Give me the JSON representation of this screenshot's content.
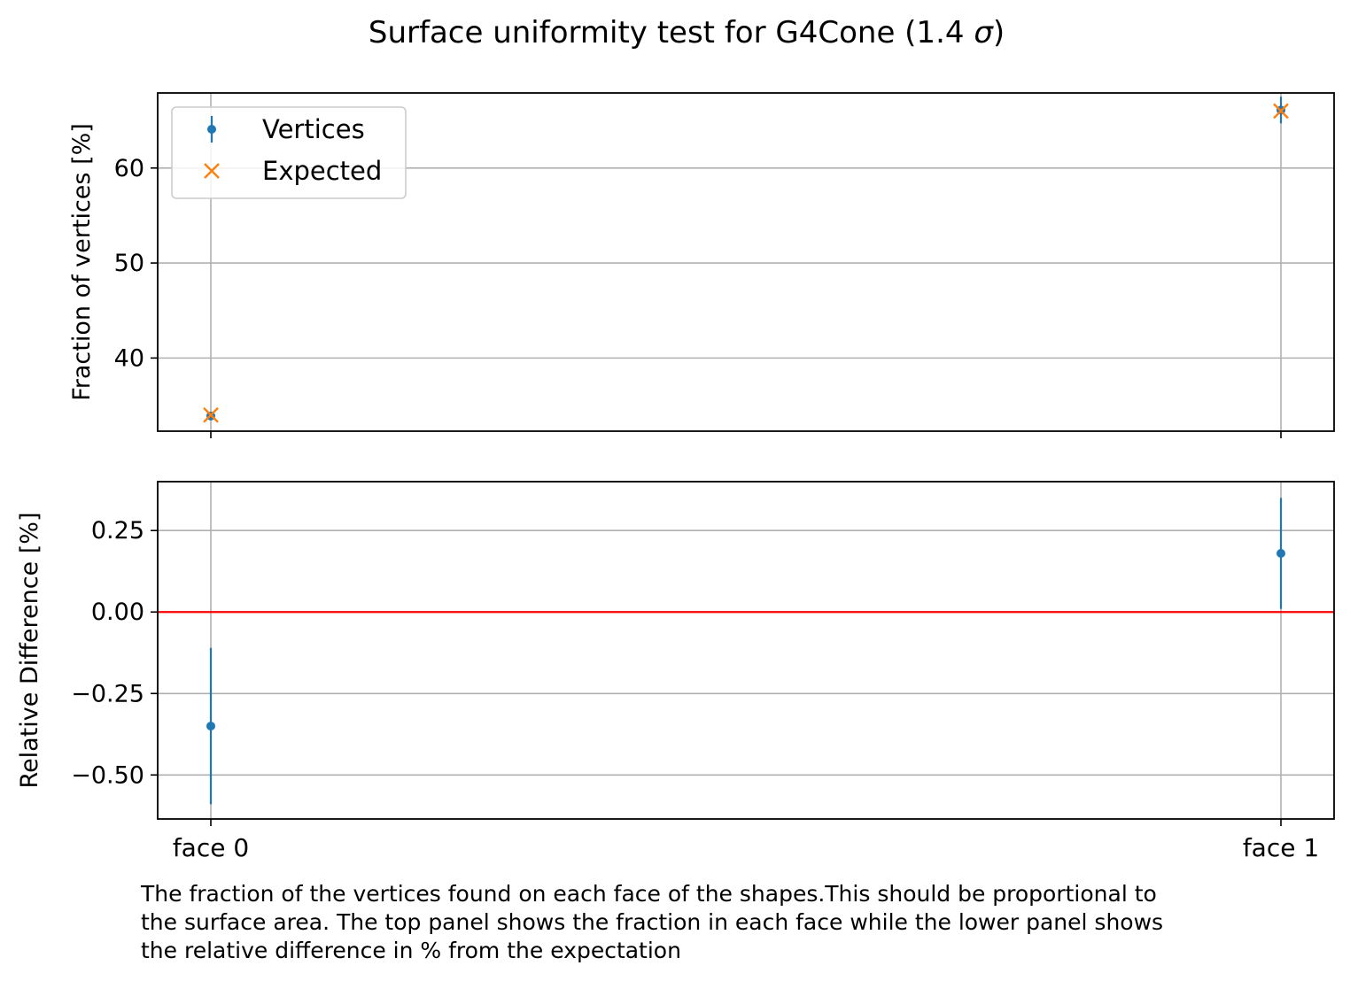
{
  "chart_data": {
    "title": "Surface uniformity test for G4Cone (1.4 σ)",
    "title_parts": {
      "prefix": "Surface uniformity test for G4Cone (1.4 ",
      "sigma": "σ",
      "suffix": ")"
    },
    "type": "scatter",
    "categories": [
      "face 0",
      "face 1"
    ],
    "grid": true,
    "panels": [
      {
        "ylabel": "Fraction of vertices [%]",
        "ylim": [
          32.3,
          67.9
        ],
        "yticks": [
          40,
          50,
          60
        ],
        "ytick_labels": [
          "40",
          "50",
          "60"
        ],
        "legend_position": "upper-left",
        "series": [
          {
            "name": "Vertices",
            "marker": "dot",
            "color": "#1f77b4",
            "values": [
              33.9,
              66.1
            ],
            "errors": [
              0.08,
              1.4
            ]
          },
          {
            "name": "Expected",
            "marker": "x",
            "color": "#ff7f0e",
            "values": [
              34.0,
              66.0
            ]
          }
        ]
      },
      {
        "ylabel": "Relative Difference [%]",
        "ylim": [
          -0.635,
          0.4
        ],
        "yticks": [
          -0.5,
          -0.25,
          0.0,
          0.25
        ],
        "ytick_labels": [
          "−0.50",
          "−0.25",
          "0.00",
          "0.25"
        ],
        "reference_line": {
          "y": 0.0,
          "color": "#ff0000"
        },
        "series": [
          {
            "name": "Relative difference",
            "marker": "dot",
            "color": "#1f77b4",
            "values": [
              -0.35,
              0.18
            ],
            "errors": [
              0.24,
              0.17
            ]
          }
        ]
      }
    ]
  },
  "caption": {
    "lines": [
      "The fraction of the vertices found on each face of the shapes.This should be proportional to",
      "the surface area. The top panel shows the fraction in each face while the lower panel shows",
      "the relative difference in % from the expectation"
    ]
  }
}
